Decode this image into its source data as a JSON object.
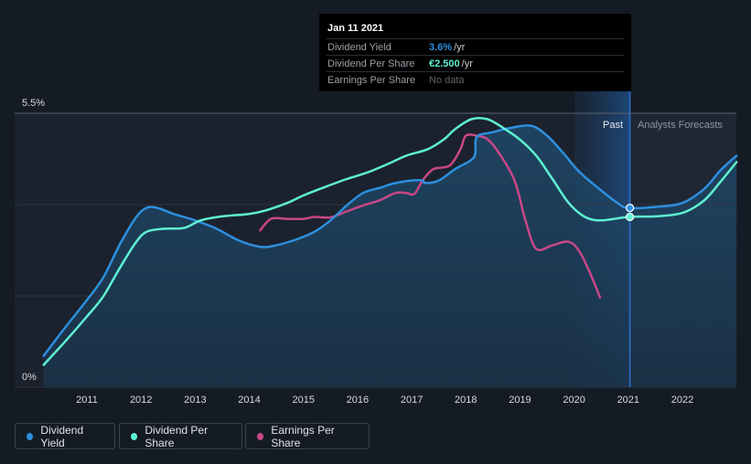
{
  "chart_data": {
    "type": "line",
    "x_ticks": [
      "2011",
      "2012",
      "2013",
      "2014",
      "2015",
      "2016",
      "2017",
      "2018",
      "2019",
      "2020",
      "2021",
      "2022"
    ],
    "y_tick_labels": [
      "5.5%",
      "0%"
    ],
    "ylim": [
      0,
      5.5
    ],
    "region_labels": {
      "past": "Past",
      "forecast": "Analysts Forecasts"
    },
    "forecast_start": 2021.03,
    "series": [
      {
        "name": "Dividend Yield",
        "color": "#2d8fde",
        "points": [
          [
            2010.2,
            0.63
          ],
          [
            2010.6,
            1.2
          ],
          [
            2011.0,
            1.75
          ],
          [
            2011.3,
            2.2
          ],
          [
            2011.6,
            2.85
          ],
          [
            2011.9,
            3.4
          ],
          [
            2012.1,
            3.6
          ],
          [
            2012.3,
            3.6
          ],
          [
            2012.6,
            3.48
          ],
          [
            2013.0,
            3.35
          ],
          [
            2013.4,
            3.18
          ],
          [
            2013.8,
            2.95
          ],
          [
            2014.2,
            2.82
          ],
          [
            2014.5,
            2.85
          ],
          [
            2014.9,
            2.98
          ],
          [
            2015.2,
            3.12
          ],
          [
            2015.5,
            3.35
          ],
          [
            2015.8,
            3.65
          ],
          [
            2016.1,
            3.9
          ],
          [
            2016.4,
            4.0
          ],
          [
            2016.7,
            4.1
          ],
          [
            2017.0,
            4.15
          ],
          [
            2017.2,
            4.15
          ],
          [
            2017.25,
            4.1
          ],
          [
            2017.5,
            4.15
          ],
          [
            2017.8,
            4.38
          ],
          [
            2018.15,
            4.62
          ],
          [
            2018.2,
            5.02
          ],
          [
            2018.5,
            5.12
          ],
          [
            2018.8,
            5.2
          ],
          [
            2019.2,
            5.25
          ],
          [
            2019.5,
            5.05
          ],
          [
            2019.8,
            4.7
          ],
          [
            2020.1,
            4.32
          ],
          [
            2020.5,
            3.95
          ],
          [
            2020.8,
            3.7
          ],
          [
            2021.0,
            3.6
          ],
          [
            2021.5,
            3.62
          ],
          [
            2022.0,
            3.7
          ],
          [
            2022.4,
            3.98
          ],
          [
            2022.7,
            4.35
          ],
          [
            2023.0,
            4.65
          ]
        ]
      },
      {
        "name": "Dividend Per Share",
        "color": "#5ef0d2",
        "points": [
          [
            2010.2,
            0.45
          ],
          [
            2010.6,
            0.92
          ],
          [
            2011.0,
            1.42
          ],
          [
            2011.3,
            1.82
          ],
          [
            2011.6,
            2.38
          ],
          [
            2011.9,
            2.9
          ],
          [
            2012.1,
            3.12
          ],
          [
            2012.4,
            3.18
          ],
          [
            2012.8,
            3.2
          ],
          [
            2013.1,
            3.35
          ],
          [
            2013.5,
            3.43
          ],
          [
            2014.0,
            3.48
          ],
          [
            2014.3,
            3.55
          ],
          [
            2014.7,
            3.7
          ],
          [
            2015.0,
            3.85
          ],
          [
            2015.4,
            4.02
          ],
          [
            2015.8,
            4.18
          ],
          [
            2016.2,
            4.32
          ],
          [
            2016.6,
            4.5
          ],
          [
            2016.9,
            4.65
          ],
          [
            2017.3,
            4.78
          ],
          [
            2017.6,
            4.98
          ],
          [
            2017.8,
            5.18
          ],
          [
            2018.1,
            5.38
          ],
          [
            2018.4,
            5.38
          ],
          [
            2018.7,
            5.2
          ],
          [
            2019.0,
            4.97
          ],
          [
            2019.3,
            4.65
          ],
          [
            2019.6,
            4.18
          ],
          [
            2019.9,
            3.7
          ],
          [
            2020.2,
            3.42
          ],
          [
            2020.5,
            3.35
          ],
          [
            2021.0,
            3.42
          ],
          [
            2021.5,
            3.43
          ],
          [
            2022.0,
            3.5
          ],
          [
            2022.4,
            3.75
          ],
          [
            2022.7,
            4.12
          ],
          [
            2023.0,
            4.52
          ]
        ]
      },
      {
        "name": "Earnings Per Share",
        "color": "#c84788",
        "points": [
          [
            2014.2,
            3.15
          ],
          [
            2014.4,
            3.38
          ],
          [
            2014.7,
            3.38
          ],
          [
            2015.0,
            3.38
          ],
          [
            2015.2,
            3.42
          ],
          [
            2015.5,
            3.41
          ],
          [
            2015.8,
            3.53
          ],
          [
            2016.1,
            3.65
          ],
          [
            2016.4,
            3.75
          ],
          [
            2016.7,
            3.9
          ],
          [
            2016.9,
            3.9
          ],
          [
            2017.05,
            3.88
          ],
          [
            2017.2,
            4.15
          ],
          [
            2017.4,
            4.38
          ],
          [
            2017.7,
            4.45
          ],
          [
            2017.9,
            4.78
          ],
          [
            2018.0,
            5.05
          ],
          [
            2018.2,
            5.05
          ],
          [
            2018.4,
            4.98
          ],
          [
            2018.6,
            4.72
          ],
          [
            2018.9,
            4.15
          ],
          [
            2019.1,
            3.35
          ],
          [
            2019.3,
            2.78
          ],
          [
            2019.6,
            2.85
          ],
          [
            2019.9,
            2.92
          ],
          [
            2020.1,
            2.72
          ],
          [
            2020.3,
            2.28
          ],
          [
            2020.48,
            1.8
          ]
        ]
      }
    ]
  },
  "tooltip": {
    "date": "Jan 11 2021",
    "rows": [
      {
        "label": "Dividend Yield",
        "value": "3.6%",
        "unit": "/yr",
        "color": "#2d8fde"
      },
      {
        "label": "Dividend Per Share",
        "value": "€2.500",
        "unit": "/yr",
        "color": "#5ef0d2"
      },
      {
        "label": "Earnings Per Share",
        "no_data": "No data"
      }
    ]
  },
  "legend": [
    {
      "label": "Dividend Yield",
      "color": "#2d8fde"
    },
    {
      "label": "Dividend Per Share",
      "color": "#5ef0d2"
    },
    {
      "label": "Earnings Per Share",
      "color": "#c84788"
    }
  ]
}
